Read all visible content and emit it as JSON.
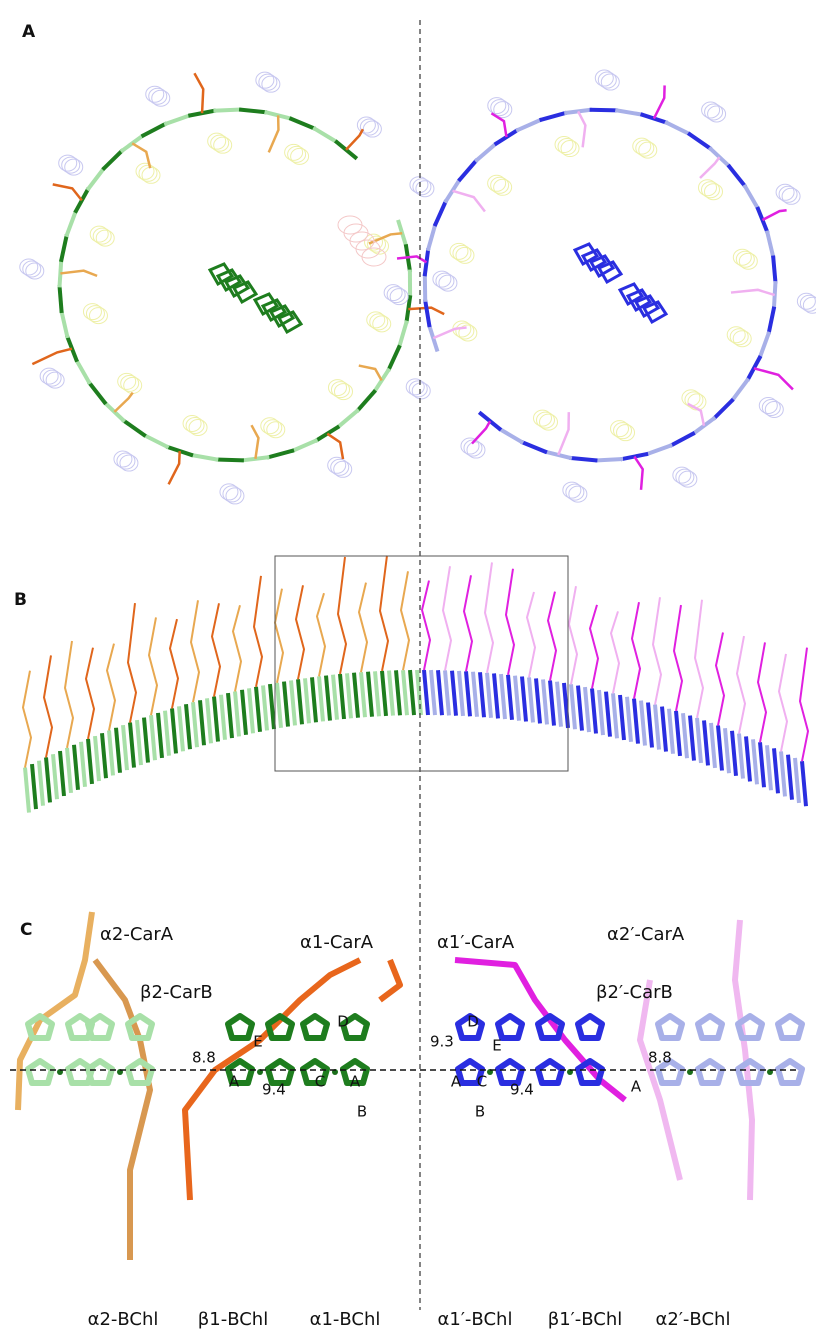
{
  "panels": [
    {
      "label": "A"
    },
    {
      "label": "B"
    },
    {
      "label": "C",
      "pigments": [
        "α2-CarA",
        "β2-CarB",
        "α1-CarA",
        "α1′-CarA",
        "α2′-CarA",
        "β2′-CarB"
      ],
      "distances": [
        8.8,
        9.4,
        9.3,
        9.4,
        8.8
      ],
      "rings": [
        "E",
        "D",
        "A",
        "C",
        "A",
        "B",
        "D",
        "E",
        "A",
        "C",
        "B",
        "A"
      ],
      "bchls": [
        "α2-BChl",
        "β1-BChl",
        "α1-BChl",
        "α1′-BChl",
        "β1′-BChl",
        "α2′-BChl"
      ]
    }
  ]
}
